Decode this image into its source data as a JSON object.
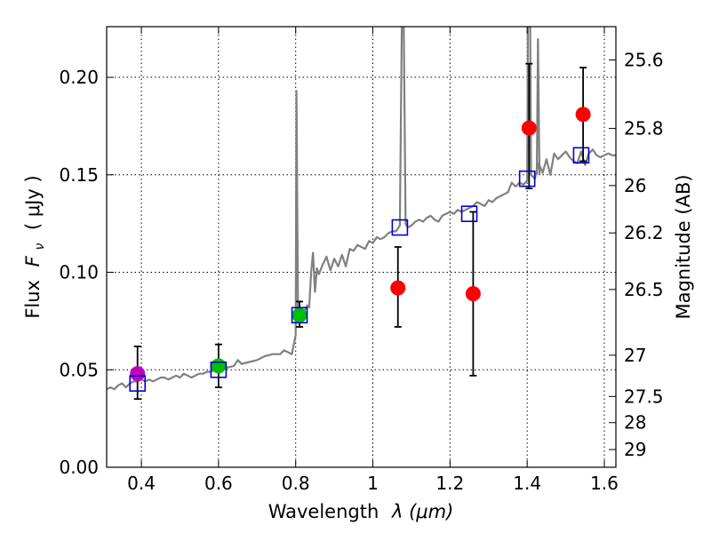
{
  "chart_data": {
    "type": "scatter",
    "xlabel_text": "Wavelength",
    "xlabel_symbol": "λ (μm)",
    "ylabel_text": "Flux",
    "ylabel_symbol": "F",
    "ylabel_subscript": "ν",
    "ylabel_unit": "( μJy )",
    "y2label": "Magnitude (AB)",
    "xlim": [
      0.31,
      1.63
    ],
    "ylim": [
      0.0,
      0.226
    ],
    "grid": true,
    "x_ticks": [
      {
        "value": 0.4,
        "label": "0.4"
      },
      {
        "value": 0.6,
        "label": "0.6"
      },
      {
        "value": 0.8,
        "label": "0.8"
      },
      {
        "value": 1.0,
        "label": "1"
      },
      {
        "value": 1.2,
        "label": "1.2"
      },
      {
        "value": 1.4,
        "label": "1.4"
      },
      {
        "value": 1.6,
        "label": "1.6"
      }
    ],
    "y_ticks": [
      {
        "value": 0.0,
        "label": "0.00"
      },
      {
        "value": 0.05,
        "label": "0.05"
      },
      {
        "value": 0.1,
        "label": "0.10"
      },
      {
        "value": 0.15,
        "label": "0.15"
      },
      {
        "value": 0.2,
        "label": "0.20"
      }
    ],
    "y2_ticks": [
      {
        "flux": 0.2089,
        "label": "25.6"
      },
      {
        "flux": 0.1738,
        "label": "25.8"
      },
      {
        "flux": 0.1445,
        "label": "26"
      },
      {
        "flux": 0.1202,
        "label": "26.2"
      },
      {
        "flux": 0.0912,
        "label": "26.5"
      },
      {
        "flux": 0.0575,
        "label": "27"
      },
      {
        "flux": 0.0363,
        "label": "27.5"
      },
      {
        "flux": 0.0229,
        "label": "28"
      },
      {
        "flux": 0.0091,
        "label": "29"
      }
    ],
    "observed": [
      {
        "x": 0.39,
        "y": 0.048,
        "err_low": 0.035,
        "err_high": 0.062,
        "color": "#bf00bf"
      },
      {
        "x": 0.6,
        "y": 0.052,
        "err_low": 0.041,
        "err_high": 0.063,
        "color": "#00bf00"
      },
      {
        "x": 0.81,
        "y": 0.078,
        "err_low": 0.072,
        "err_high": 0.085,
        "color": "#00bf00"
      },
      {
        "x": 1.065,
        "y": 0.092,
        "err_low": 0.072,
        "err_high": 0.113,
        "color": "#ff0000"
      },
      {
        "x": 1.26,
        "y": 0.089,
        "err_low": 0.047,
        "err_high": 0.131,
        "color": "#ff0000"
      },
      {
        "x": 1.405,
        "y": 0.174,
        "err_low": 0.143,
        "err_high": 0.207,
        "color": "#ff0000"
      },
      {
        "x": 1.545,
        "y": 0.181,
        "err_low": 0.157,
        "err_high": 0.205,
        "color": "#ff0000"
      }
    ],
    "model_bands": [
      {
        "x": 0.39,
        "y": 0.043
      },
      {
        "x": 0.6,
        "y": 0.05
      },
      {
        "x": 0.81,
        "y": 0.078
      },
      {
        "x": 1.07,
        "y": 0.123
      },
      {
        "x": 1.25,
        "y": 0.13
      },
      {
        "x": 1.4,
        "y": 0.148
      },
      {
        "x": 1.54,
        "y": 0.16
      }
    ],
    "spectrum": [
      [
        0.31,
        0.04
      ],
      [
        0.32,
        0.041
      ],
      [
        0.33,
        0.04
      ],
      [
        0.34,
        0.042
      ],
      [
        0.35,
        0.043
      ],
      [
        0.36,
        0.041
      ],
      [
        0.37,
        0.043
      ],
      [
        0.38,
        0.044
      ],
      [
        0.39,
        0.044
      ],
      [
        0.4,
        0.045
      ],
      [
        0.41,
        0.044
      ],
      [
        0.42,
        0.045
      ],
      [
        0.43,
        0.044
      ],
      [
        0.44,
        0.045
      ],
      [
        0.45,
        0.046
      ],
      [
        0.46,
        0.046
      ],
      [
        0.47,
        0.045
      ],
      [
        0.48,
        0.046
      ],
      [
        0.49,
        0.047
      ],
      [
        0.5,
        0.046
      ],
      [
        0.51,
        0.048
      ],
      [
        0.52,
        0.047
      ],
      [
        0.53,
        0.046
      ],
      [
        0.54,
        0.047
      ],
      [
        0.55,
        0.048
      ],
      [
        0.56,
        0.048
      ],
      [
        0.57,
        0.049
      ],
      [
        0.58,
        0.049
      ],
      [
        0.59,
        0.05
      ],
      [
        0.6,
        0.05
      ],
      [
        0.62,
        0.051
      ],
      [
        0.64,
        0.052
      ],
      [
        0.65,
        0.055
      ],
      [
        0.66,
        0.053
      ],
      [
        0.68,
        0.054
      ],
      [
        0.7,
        0.055
      ],
      [
        0.72,
        0.057
      ],
      [
        0.74,
        0.058
      ],
      [
        0.76,
        0.058
      ],
      [
        0.77,
        0.06
      ],
      [
        0.78,
        0.059
      ],
      [
        0.79,
        0.058
      ],
      [
        0.8,
        0.068
      ],
      [
        0.802,
        0.193
      ],
      [
        0.806,
        0.08
      ],
      [
        0.81,
        0.074
      ],
      [
        0.82,
        0.079
      ],
      [
        0.83,
        0.083
      ],
      [
        0.835,
        0.082
      ],
      [
        0.84,
        0.1
      ],
      [
        0.845,
        0.11
      ],
      [
        0.85,
        0.09
      ],
      [
        0.855,
        0.102
      ],
      [
        0.86,
        0.099
      ],
      [
        0.87,
        0.104
      ],
      [
        0.88,
        0.108
      ],
      [
        0.89,
        0.101
      ],
      [
        0.9,
        0.107
      ],
      [
        0.91,
        0.103
      ],
      [
        0.92,
        0.109
      ],
      [
        0.93,
        0.103
      ],
      [
        0.94,
        0.112
      ],
      [
        0.95,
        0.111
      ],
      [
        0.96,
        0.114
      ],
      [
        0.97,
        0.113
      ],
      [
        0.98,
        0.112
      ],
      [
        0.99,
        0.116
      ],
      [
        1.0,
        0.115
      ],
      [
        1.01,
        0.118
      ],
      [
        1.02,
        0.117
      ],
      [
        1.03,
        0.118
      ],
      [
        1.04,
        0.12
      ],
      [
        1.05,
        0.121
      ],
      [
        1.06,
        0.121
      ],
      [
        1.07,
        0.124
      ],
      [
        1.075,
        0.226
      ],
      [
        1.08,
        0.226
      ],
      [
        1.085,
        0.125
      ],
      [
        1.09,
        0.123
      ],
      [
        1.1,
        0.124
      ],
      [
        1.11,
        0.126
      ],
      [
        1.12,
        0.127
      ],
      [
        1.13,
        0.126
      ],
      [
        1.14,
        0.128
      ],
      [
        1.15,
        0.129
      ],
      [
        1.16,
        0.127
      ],
      [
        1.17,
        0.126
      ],
      [
        1.18,
        0.129
      ],
      [
        1.19,
        0.13
      ],
      [
        1.2,
        0.131
      ],
      [
        1.21,
        0.13
      ],
      [
        1.22,
        0.132
      ],
      [
        1.23,
        0.131
      ],
      [
        1.24,
        0.132
      ],
      [
        1.25,
        0.133
      ],
      [
        1.26,
        0.134
      ],
      [
        1.27,
        0.136
      ],
      [
        1.28,
        0.135
      ],
      [
        1.29,
        0.134
      ],
      [
        1.3,
        0.137
      ],
      [
        1.31,
        0.136
      ],
      [
        1.32,
        0.138
      ],
      [
        1.33,
        0.139
      ],
      [
        1.34,
        0.14
      ],
      [
        1.35,
        0.141
      ],
      [
        1.36,
        0.146
      ],
      [
        1.37,
        0.144
      ],
      [
        1.38,
        0.146
      ],
      [
        1.39,
        0.145
      ],
      [
        1.4,
        0.147
      ],
      [
        1.402,
        0.226
      ],
      [
        1.408,
        0.226
      ],
      [
        1.41,
        0.15
      ],
      [
        1.42,
        0.148
      ],
      [
        1.43,
        0.156
      ],
      [
        1.44,
        0.151
      ],
      [
        1.45,
        0.158
      ],
      [
        1.46,
        0.15
      ],
      [
        1.47,
        0.161
      ],
      [
        1.48,
        0.158
      ],
      [
        1.49,
        0.16
      ],
      [
        1.5,
        0.162
      ],
      [
        1.51,
        0.159
      ],
      [
        1.52,
        0.157
      ],
      [
        1.53,
        0.156
      ],
      [
        1.54,
        0.162
      ],
      [
        1.55,
        0.155
      ],
      [
        1.56,
        0.161
      ],
      [
        1.57,
        0.163
      ],
      [
        1.58,
        0.16
      ],
      [
        1.59,
        0.159
      ],
      [
        1.6,
        0.16
      ],
      [
        1.61,
        0.161
      ],
      [
        1.62,
        0.16
      ],
      [
        1.63,
        0.16
      ]
    ],
    "spectrum_extra_peaks": [
      [
        1.425,
        0.15
      ],
      [
        1.428,
        0.22
      ],
      [
        1.432,
        0.15
      ]
    ],
    "colors": {
      "spectrum": "#808080",
      "model_band": "#0000cc",
      "errorbar": "#000000",
      "grid": "#000000",
      "axes": "#000000"
    }
  }
}
